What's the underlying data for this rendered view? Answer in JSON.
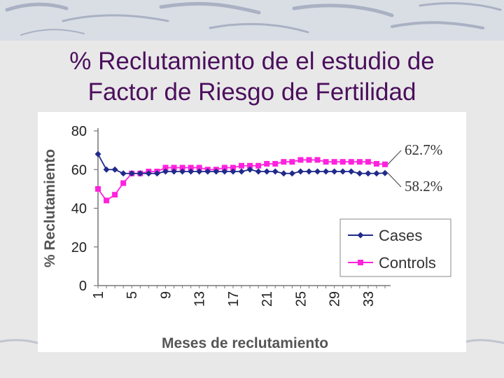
{
  "slide": {
    "title_line1": "% Reclutamiento de el estudio de",
    "title_line2": "Factor de Riesgo de Fertilidad",
    "title_color": "#4b0f5c"
  },
  "chart_data": {
    "type": "line",
    "title": "",
    "xlabel": "Meses de reclutamiento",
    "ylabel": "% Reclutamiento",
    "ylim": [
      0,
      80
    ],
    "yticks": [
      0,
      20,
      40,
      60,
      80
    ],
    "xlim": [
      1,
      35
    ],
    "xticks": [
      1,
      5,
      9,
      13,
      17,
      21,
      25,
      29,
      33
    ],
    "grid": false,
    "legend_position": "right",
    "x": [
      1,
      2,
      3,
      4,
      5,
      6,
      7,
      8,
      9,
      10,
      11,
      12,
      13,
      14,
      15,
      16,
      17,
      18,
      19,
      20,
      21,
      22,
      23,
      24,
      25,
      26,
      27,
      28,
      29,
      30,
      31,
      32,
      33,
      34,
      35
    ],
    "series": [
      {
        "name": "Cases",
        "color": "#1f2a8a",
        "marker": "diamond",
        "values": [
          68,
          60,
          60,
          58,
          58,
          58,
          58,
          58,
          59,
          59,
          59,
          59,
          59,
          59,
          59,
          59,
          59,
          59,
          60,
          59,
          59,
          59,
          58,
          58,
          59,
          59,
          59,
          59,
          59,
          59,
          59,
          58,
          58,
          58,
          58.2
        ],
        "end_label": "58.2%"
      },
      {
        "name": "Controls",
        "color": "#ff22dd",
        "marker": "square",
        "values": [
          50,
          44,
          47,
          53,
          58,
          58,
          59,
          59,
          61,
          61,
          61,
          61,
          61,
          60,
          60,
          61,
          61,
          62,
          62,
          62,
          63,
          63,
          64,
          64,
          65,
          65,
          65,
          64,
          64,
          64,
          64,
          64,
          64,
          63,
          62.7
        ],
        "end_label": "62.7%"
      }
    ]
  }
}
